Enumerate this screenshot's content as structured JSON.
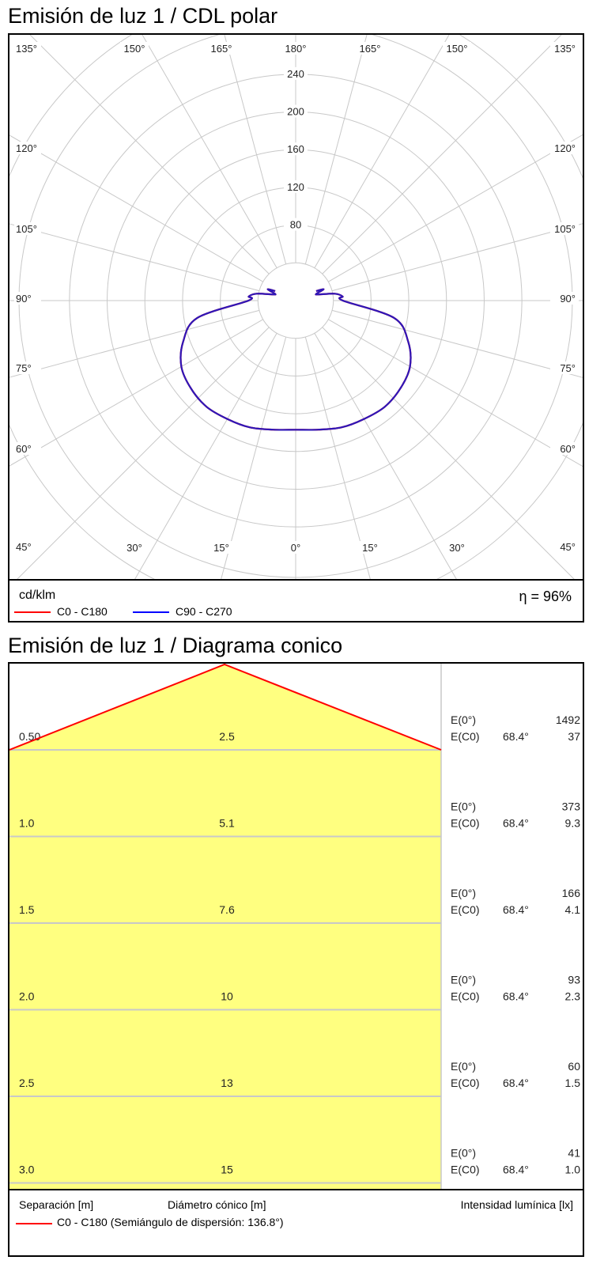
{
  "polar": {
    "title": "Emisión de luz 1 / CDL polar",
    "unit": "cd/klm",
    "efficiency": "η = 96%",
    "legend": [
      {
        "label": "C0 - C180",
        "color": "#ff0000"
      },
      {
        "label": "C90 - C270",
        "color": "#0000ff"
      }
    ]
  },
  "cone": {
    "title": "Emisión de luz 1 / Diagrama conico",
    "labels": {
      "separation": "Separación [m]",
      "diameter": "Diámetro cónico [m]",
      "intensity": "Intensidad lumínica [lx]"
    },
    "legend": "C0 - C180 (Semiángulo de dispersión: 136.8°)",
    "legend_color": "#ff0000",
    "fill_color": "#ffff80"
  },
  "chart_data": [
    {
      "type": "polar",
      "title": "Emisión de luz 1 / CDL polar",
      "unit": "cd/klm",
      "radial_ticks": [
        40,
        80,
        120,
        160,
        200,
        240
      ],
      "radial_tick_labels": [
        "80",
        "120",
        "160",
        "200",
        "240"
      ],
      "rmax": 260,
      "angle_labels_left": [
        "135°",
        "120°",
        "105°",
        "90°",
        "75°",
        "60°",
        "45°"
      ],
      "angle_labels_top": [
        "150°",
        "165°",
        "180°",
        "165°",
        "150°"
      ],
      "angle_labels_bottom": [
        "30°",
        "15°",
        "0°",
        "15°",
        "30°"
      ],
      "angle_labels_right": [
        "135°",
        "120°",
        "105°",
        "90°",
        "75°",
        "60°",
        "45°"
      ],
      "series": [
        {
          "name": "C90 - C270",
          "color": "#2e17b8",
          "angles_deg": [
            0,
            10,
            20,
            30,
            40,
            50,
            60,
            70,
            80,
            90,
            95,
            100,
            105,
            108,
            112,
            115
          ],
          "values": [
            137,
            139,
            143,
            145,
            147,
            145,
            140,
            127,
            106,
            50,
            50,
            42,
            25,
            23,
            32,
            24
          ]
        },
        {
          "name": "C0 - C180",
          "color": "#ff0000",
          "angles_deg": [
            0,
            10,
            20,
            30,
            40,
            50,
            60,
            70,
            80,
            90,
            95,
            100,
            105,
            108,
            112,
            115
          ],
          "values": [
            137,
            139,
            143,
            145,
            147,
            145,
            140,
            127,
            106,
            50,
            50,
            42,
            25,
            23,
            32,
            24
          ]
        }
      ],
      "annotation": "η = 96%"
    },
    {
      "type": "table",
      "title": "Emisión de luz 1 / Diagrama conico",
      "half_angle": "136.8°",
      "columns": [
        "Separación [m]",
        "Diámetro cónico [m]",
        "Intensidad lumínica [lx]"
      ],
      "rows": [
        {
          "separation": "0.50",
          "diameter": "2.5",
          "e0": "1492",
          "ec0_angle": "68.4°",
          "ec0": "37"
        },
        {
          "separation": "1.0",
          "diameter": "5.1",
          "e0": "373",
          "ec0_angle": "68.4°",
          "ec0": "9.3"
        },
        {
          "separation": "1.5",
          "diameter": "7.6",
          "e0": "166",
          "ec0_angle": "68.4°",
          "ec0": "4.1"
        },
        {
          "separation": "2.0",
          "diameter": "10",
          "e0": "93",
          "ec0_angle": "68.4°",
          "ec0": "2.3"
        },
        {
          "separation": "2.5",
          "diameter": "13",
          "e0": "60",
          "ec0_angle": "68.4°",
          "ec0": "1.5"
        },
        {
          "separation": "3.0",
          "diameter": "15",
          "e0": "41",
          "ec0_angle": "68.4°",
          "ec0": "1.0"
        }
      ],
      "e0_label": "E(0°)",
      "ec0_label": "E(C0)"
    }
  ]
}
